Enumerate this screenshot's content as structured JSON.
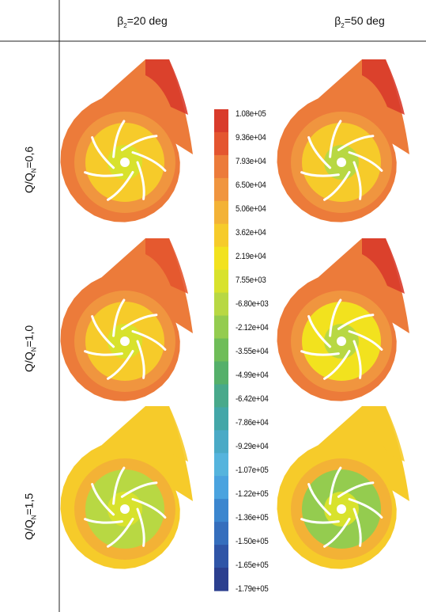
{
  "columns": [
    {
      "label_prefix": "β",
      "label_sub": "2",
      "label_suffix": "=20 deg"
    },
    {
      "label_prefix": "β",
      "label_sub": "2",
      "label_suffix": "=50 deg"
    }
  ],
  "rows": [
    {
      "label_prefix": "Q/Q",
      "label_sub": "N",
      "label_suffix": "=0,6"
    },
    {
      "label_prefix": "Q/Q",
      "label_sub": "N",
      "label_suffix": "=1,0"
    },
    {
      "label_prefix": "Q/Q",
      "label_sub": "N",
      "label_suffix": "=1,5"
    }
  ],
  "legend": {
    "labels": [
      "1.08e+05",
      "9.36e+04",
      "7.93e+04",
      "6.50e+04",
      "5.06e+04",
      "3.62e+04",
      "2.19e+04",
      "7.55e+03",
      "-6.80e+03",
      "-2.12e+04",
      "-3.55e+04",
      "-4.99e+04",
      "-6.42e+04",
      "-7.86e+04",
      "-9.29e+04",
      "-1.07e+05",
      "-1.22e+05",
      "-1.36e+05",
      "-1.50e+05",
      "-1.65e+05",
      "-1.79e+05"
    ],
    "colors": [
      "#d93b2b",
      "#e4552f",
      "#ec7b3a",
      "#f0953f",
      "#f3b236",
      "#f6cb2a",
      "#f2e21e",
      "#d8e22c",
      "#b8d843",
      "#94cc4f",
      "#6fbd58",
      "#55b06a",
      "#48a98b",
      "#43a7a8",
      "#4aaac6",
      "#55b4dd",
      "#4aa3df",
      "#3b86cf",
      "#356ebd",
      "#2f55a7",
      "#2b3f8f"
    ]
  },
  "panels": [
    {
      "row": 0,
      "col": 0,
      "volute_color": "#ec7b3a",
      "tip_color": "#d93b2b",
      "ring_color": "#f0953f",
      "impeller_color": "#f6cb2a",
      "hub_color": "#d8e22c",
      "blade_color": "#ffffff"
    },
    {
      "row": 0,
      "col": 1,
      "volute_color": "#ec7b3a",
      "tip_color": "#d93b2b",
      "ring_color": "#f0953f",
      "impeller_color": "#f6cb2a",
      "hub_color": "#b8d843",
      "blade_color": "#ffffff"
    },
    {
      "row": 1,
      "col": 0,
      "volute_color": "#ec7b3a",
      "tip_color": "#e4552f",
      "ring_color": "#f0953f",
      "impeller_color": "#f6cb2a",
      "hub_color": "#d8e22c",
      "blade_color": "#ffffff"
    },
    {
      "row": 1,
      "col": 1,
      "volute_color": "#ec7b3a",
      "tip_color": "#d93b2b",
      "ring_color": "#f0953f",
      "impeller_color": "#f2e21e",
      "hub_color": "#b8d843",
      "blade_color": "#ffffff"
    },
    {
      "row": 2,
      "col": 0,
      "volute_color": "#f6cb2a",
      "tip_color": "#f6cb2a",
      "ring_color": "#f3b236",
      "impeller_color": "#b8d843",
      "hub_color": "#d8e22c",
      "blade_color": "#ffffff"
    },
    {
      "row": 2,
      "col": 1,
      "volute_color": "#f6cb2a",
      "tip_color": "#f6cb2a",
      "ring_color": "#f3b236",
      "impeller_color": "#94cc4f",
      "hub_color": "#d8e22c",
      "blade_color": "#ffffff"
    }
  ]
}
